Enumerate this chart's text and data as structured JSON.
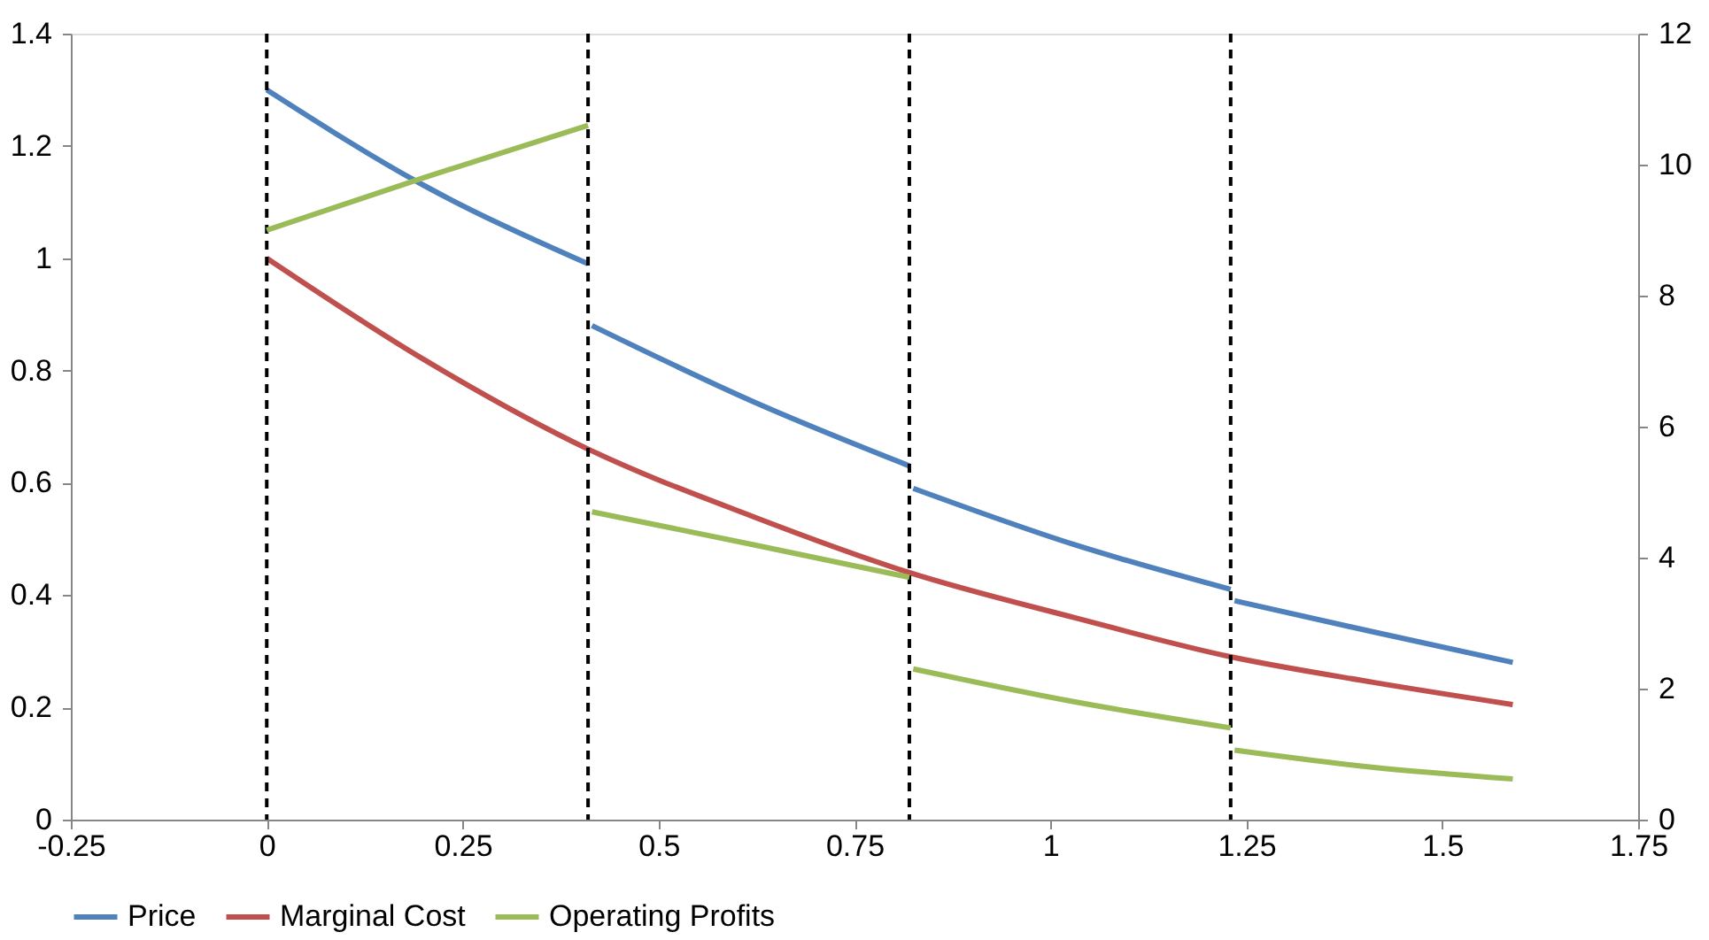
{
  "chart_data": {
    "type": "line",
    "xlim": [
      -0.25,
      1.75
    ],
    "xticks": [
      -0.25,
      0,
      0.25,
      0.5,
      0.75,
      1,
      1.25,
      1.5,
      1.75
    ],
    "ylim": [
      0,
      1.4
    ],
    "yticks": [
      0,
      0.2,
      0.4,
      0.6,
      0.8,
      1,
      1.2,
      1.4
    ],
    "y2lim": [
      0,
      12
    ],
    "y2ticks": [
      0,
      2,
      4,
      6,
      8,
      10,
      12
    ],
    "grid": false,
    "legend": "bottom",
    "line_style": "solid",
    "marker": "none",
    "series": [
      {
        "name": "Price",
        "color": "#4f81bd",
        "x": [
          0,
          0.2,
          0.41,
          0.412,
          0.415,
          0.62,
          0.82,
          0.822,
          0.825,
          1.03,
          1.23,
          1.232,
          1.235,
          1.41,
          1.59
        ],
        "values": [
          1.3,
          1.13,
          0.99,
          null,
          0.88,
          0.745,
          0.63,
          null,
          0.59,
          0.49,
          0.41,
          null,
          0.39,
          0.335,
          0.28
        ]
      },
      {
        "name": "Marginal Cost",
        "color": "#c0504d",
        "x": [
          0,
          0.2,
          0.41,
          0.62,
          0.82,
          1.03,
          1.23,
          1.41,
          1.59
        ],
        "values": [
          1.0,
          0.82,
          0.66,
          0.54,
          0.44,
          0.36,
          0.29,
          0.245,
          0.205
        ]
      },
      {
        "name": "Operating Profits",
        "color": "#9bbb59",
        "axis": "y2",
        "x": [
          0,
          0.2,
          0.41,
          0.412,
          0.415,
          0.62,
          0.82,
          0.822,
          0.825,
          1.03,
          1.23,
          1.232,
          1.235,
          1.41,
          1.59
        ],
        "values": [
          9.0,
          9.8,
          10.6,
          null,
          4.7,
          4.2,
          3.7,
          null,
          2.3,
          1.8,
          1.4,
          null,
          1.06,
          0.8,
          0.62
        ]
      }
    ],
    "ref_lines": [
      {
        "axis": "x",
        "value": 0,
        "color": "#000000",
        "line_style": "dashed"
      },
      {
        "axis": "x",
        "value": 0.41,
        "color": "#000000",
        "line_style": "dashed"
      },
      {
        "axis": "x",
        "value": 0.82,
        "color": "#000000",
        "line_style": "dashed"
      },
      {
        "axis": "x",
        "value": 1.23,
        "color": "#000000",
        "line_style": "dashed"
      }
    ]
  }
}
